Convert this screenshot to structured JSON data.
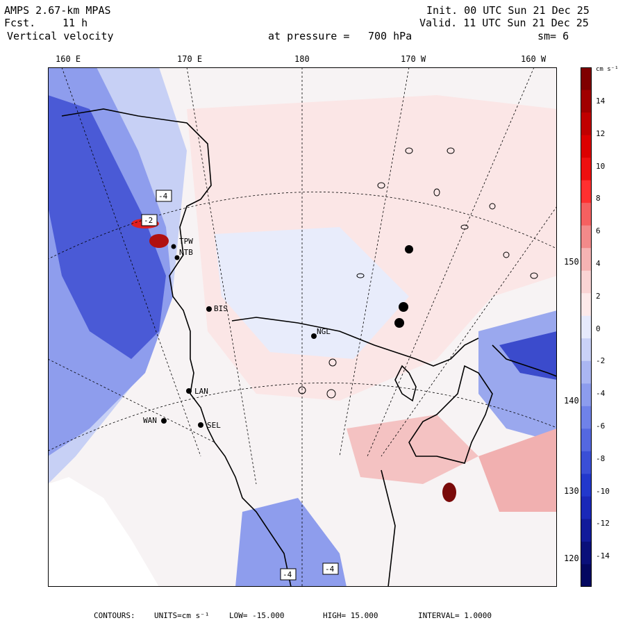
{
  "header": {
    "model": "AMPS 2.67-km MPAS",
    "forecast_label": "Fcst.",
    "forecast_hours": "11 h",
    "field": "Vertical velocity",
    "init": "Init. 00 UTC Sun 21 Dec 25",
    "valid": "Valid. 11 UTC Sun 21 Dec 25",
    "level_label": "at pressure =",
    "level_value": "700 hPa",
    "smoothing": "sm= 6"
  },
  "map": {
    "longitude_labels": [
      "160 E",
      "170 E",
      "180",
      "170 W",
      "160 W"
    ],
    "latitude_labels": [
      "150 W",
      "140 W",
      "130 W",
      "120 W"
    ],
    "stations": [
      {
        "code": "TPW"
      },
      {
        "code": "NTB"
      },
      {
        "code": "BIS"
      },
      {
        "code": "NGL"
      },
      {
        "code": "LAN"
      },
      {
        "code": "WAN"
      },
      {
        "code": "SEL"
      }
    ],
    "contour_boxes": [
      "-4",
      "-2",
      "-4",
      "-4"
    ],
    "colors": {
      "strong_down": "#000080",
      "down": "#5a6bd8",
      "weak_down": "#d4dcf8",
      "neutral": "#ffffff",
      "weak_up": "#fbe2e2",
      "up": "#ee9a9a",
      "strong_up": "#8b0000"
    }
  },
  "colorbar": {
    "unit": "cm s⁻¹",
    "ticks": [
      "14",
      "12",
      "10",
      "8",
      "6",
      "4",
      "2",
      "0",
      "-2",
      "-4",
      "-6",
      "-8",
      "-10",
      "-12",
      "-14"
    ],
    "colors": [
      "#7f0000",
      "#a00000",
      "#c00000",
      "#dc0000",
      "#ee1010",
      "#ff3030",
      "#f56060",
      "#f28a8a",
      "#f5b3b3",
      "#fad4d4",
      "#fdeaea",
      "#e6eafc",
      "#c9d1f7",
      "#aab6f2",
      "#8c9ced",
      "#6f82e8",
      "#5468e0",
      "#3a4fd6",
      "#2238cc",
      "#1a28b8",
      "#121b9a",
      "#0a107a",
      "#040860"
    ]
  },
  "footer": {
    "contours_label": "CONTOURS:",
    "units_text": "UNITS=cm s⁻¹",
    "low_text": "LOW= -15.000",
    "high_text": "HIGH= 15.000",
    "interval_text": "INTERVAL= 1.0000"
  }
}
